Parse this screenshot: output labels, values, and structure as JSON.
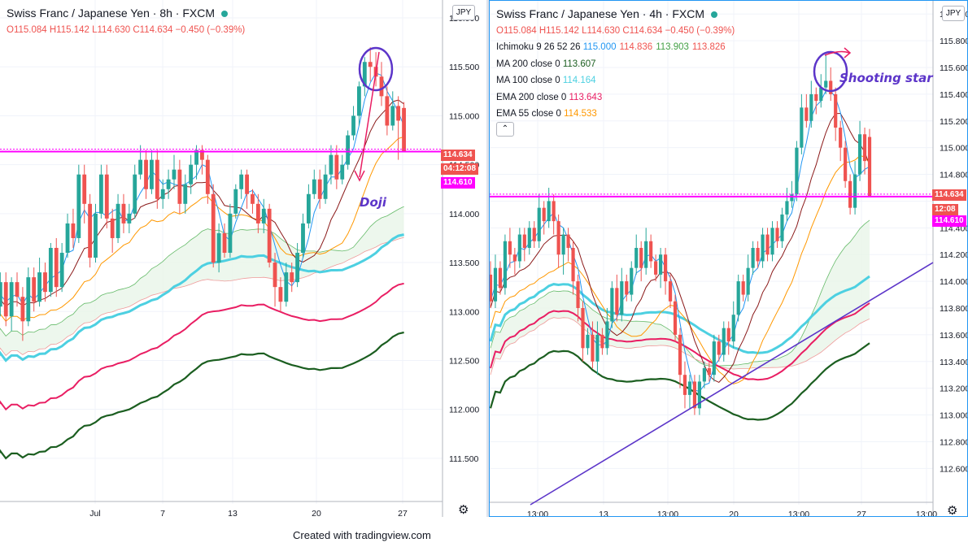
{
  "footer_text": "Created with tradingview.com",
  "colors": {
    "up": "#26a69a",
    "down": "#ef5350",
    "tenkan": "#2196f3",
    "kijun": "#8b1a1a",
    "ma200": "#1b5e20",
    "ma100": "#4dd0e1",
    "ema200": "#e91e63",
    "ema55": "#ff9800",
    "hline": "#ff00ff",
    "ann": "#5c35c9"
  },
  "left": {
    "title": "Swiss Franc / Japanese Yen · 8h · FXCM",
    "ohlc": "O115.084 H115.142 L114.630 C114.634 −0.450 (−0.39%)",
    "currency": "JPY",
    "price_tag": "114.634",
    "countdown_tag": "04:12:08",
    "line_tag": "114.610",
    "annotation": "Doji",
    "x_ticks": [
      "Jul",
      "7",
      "13",
      "20",
      "27"
    ],
    "y_ticks": [
      "116.000",
      "115.500",
      "115.000",
      "114.500",
      "114.000",
      "113.500",
      "113.000",
      "112.500",
      "112.000",
      "111.500"
    ]
  },
  "right": {
    "title": "Swiss Franc / Japanese Yen · 4h · FXCM",
    "ohlc": "O115.084 H115.142 L114.630 C114.634 −0.450 (−0.39%)",
    "currency": "JPY",
    "price_tag": "114.634",
    "countdown_tag": "12:08",
    "line_tag": "114.610",
    "annotation": "Shooting star",
    "collapse": "^",
    "indicators": [
      {
        "label": "Ichimoku 9 26 52 26",
        "values": [
          "115.000",
          "114.836",
          "113.903",
          "113.826"
        ],
        "colors": [
          "#2196f3",
          "#ef5350",
          "#43a047",
          "#ef5350"
        ]
      },
      {
        "label": "MA 200 close 0",
        "values": [
          "113.607"
        ],
        "colors": [
          "#1b5e20"
        ]
      },
      {
        "label": "MA 100 close 0",
        "values": [
          "114.164"
        ],
        "colors": [
          "#4dd0e1"
        ]
      },
      {
        "label": "EMA 200 close 0",
        "values": [
          "113.643"
        ],
        "colors": [
          "#e91e63"
        ]
      },
      {
        "label": "EMA 55 close 0",
        "values": [
          "114.533"
        ],
        "colors": [
          "#ff9800"
        ]
      }
    ],
    "x_ticks": [
      "13:00",
      "13",
      "13:00",
      "20",
      "13:00",
      "27",
      "13:00"
    ],
    "y_ticks": [
      "116.000",
      "115.800",
      "115.600",
      "115.400",
      "115.200",
      "115.000",
      "114.800",
      "114.400",
      "114.200",
      "114.000",
      "113.800",
      "113.600",
      "113.400",
      "113.200",
      "113.000",
      "112.800",
      "112.600"
    ]
  },
  "chart_data": [
    {
      "type": "candlestick",
      "title": "Swiss Franc / Japanese Yen · 8h · FXCM",
      "ylim": [
        111.2,
        116.1
      ],
      "horizontal_line": 114.634,
      "x_ticks": [
        "Jul",
        "7",
        "13",
        "20",
        "27"
      ],
      "candles": [
        [
          113.45,
          113.05,
          113.55,
          112.95
        ],
        [
          113.05,
          113.3,
          113.4,
          112.95
        ],
        [
          113.3,
          112.95,
          113.4,
          112.85
        ],
        [
          112.95,
          113.3,
          113.35,
          112.8
        ],
        [
          113.3,
          113.15,
          113.4,
          113.05
        ],
        [
          113.15,
          112.9,
          113.25,
          112.7
        ],
        [
          112.9,
          113.35,
          113.45,
          112.85
        ],
        [
          113.35,
          113.1,
          113.45,
          113.0
        ],
        [
          113.1,
          113.4,
          113.55,
          113.05
        ],
        [
          113.4,
          113.2,
          113.5,
          113.1
        ],
        [
          113.2,
          113.65,
          113.7,
          113.15
        ],
        [
          113.65,
          113.25,
          113.75,
          113.15
        ],
        [
          113.25,
          113.6,
          113.7,
          113.2
        ],
        [
          113.6,
          113.9,
          114.0,
          113.55
        ],
        [
          113.9,
          113.75,
          114.05,
          113.65
        ],
        [
          113.75,
          114.4,
          114.5,
          113.7
        ],
        [
          114.4,
          114.1,
          114.5,
          113.9
        ],
        [
          114.1,
          113.55,
          114.2,
          113.45
        ],
        [
          113.55,
          114.0,
          114.1,
          113.5
        ],
        [
          114.0,
          114.4,
          114.5,
          113.95
        ],
        [
          114.4,
          113.95,
          114.5,
          113.85
        ],
        [
          113.95,
          113.75,
          114.05,
          113.6
        ],
        [
          113.75,
          114.1,
          114.2,
          113.7
        ],
        [
          114.1,
          113.9,
          114.2,
          113.8
        ],
        [
          113.9,
          114.0,
          114.1,
          113.8
        ],
        [
          114.0,
          114.4,
          114.5,
          113.95
        ],
        [
          114.4,
          114.55,
          114.7,
          114.35
        ],
        [
          114.55,
          114.25,
          114.65,
          114.15
        ],
        [
          114.25,
          114.55,
          114.65,
          114.2
        ],
        [
          114.55,
          114.15,
          114.65,
          114.05
        ],
        [
          114.15,
          114.25,
          114.35,
          114.05
        ],
        [
          114.25,
          114.35,
          114.45,
          114.15
        ],
        [
          114.35,
          114.45,
          114.6,
          114.25
        ],
        [
          114.45,
          114.1,
          114.55,
          114.0
        ],
        [
          114.1,
          114.3,
          114.4,
          114.0
        ],
        [
          114.3,
          114.5,
          114.6,
          114.2
        ],
        [
          114.5,
          114.65,
          114.7,
          114.35
        ],
        [
          114.65,
          114.55,
          114.7,
          114.4
        ],
        [
          114.55,
          114.2,
          114.6,
          114.1
        ],
        [
          114.2,
          113.5,
          114.3,
          113.45
        ],
        [
          113.5,
          113.8,
          113.9,
          113.4
        ],
        [
          113.8,
          113.6,
          113.9,
          113.55
        ],
        [
          113.6,
          114.0,
          114.1,
          113.55
        ],
        [
          114.0,
          114.25,
          114.3,
          113.95
        ],
        [
          114.25,
          114.4,
          114.45,
          114.15
        ],
        [
          114.4,
          114.2,
          114.45,
          114.05
        ],
        [
          114.2,
          114.1,
          114.25,
          114.0
        ],
        [
          114.1,
          113.9,
          114.2,
          113.8
        ],
        [
          113.9,
          114.05,
          114.15,
          113.8
        ],
        [
          114.05,
          113.5,
          114.1,
          113.45
        ],
        [
          113.5,
          113.25,
          113.6,
          113.05
        ],
        [
          113.25,
          113.1,
          113.35,
          113.0
        ],
        [
          113.1,
          113.4,
          113.5,
          113.05
        ],
        [
          113.4,
          113.3,
          113.5,
          113.2
        ],
        [
          113.3,
          113.6,
          113.7,
          113.25
        ],
        [
          113.6,
          113.9,
          114.0,
          113.55
        ],
        [
          113.9,
          114.2,
          114.3,
          113.85
        ],
        [
          114.2,
          114.35,
          114.45,
          114.15
        ],
        [
          114.35,
          114.15,
          114.45,
          114.05
        ],
        [
          114.15,
          114.4,
          114.5,
          114.1
        ],
        [
          114.4,
          114.6,
          114.7,
          114.3
        ],
        [
          114.6,
          114.35,
          114.7,
          114.25
        ],
        [
          114.35,
          114.5,
          114.6,
          114.3
        ],
        [
          114.5,
          114.8,
          114.85,
          114.45
        ],
        [
          114.8,
          115.0,
          115.1,
          114.75
        ],
        [
          115.0,
          115.3,
          115.35,
          114.9
        ],
        [
          115.3,
          115.55,
          115.6,
          115.2
        ],
        [
          115.55,
          115.5,
          115.7,
          115.35
        ],
        [
          115.5,
          115.4,
          115.65,
          115.3
        ],
        [
          115.4,
          115.2,
          115.55,
          115.1
        ],
        [
          115.2,
          114.9,
          115.3,
          114.8
        ],
        [
          114.9,
          115.1,
          115.25,
          114.85
        ],
        [
          115.1,
          114.95,
          115.2,
          114.55
        ],
        [
          115.08,
          114.634,
          115.14,
          114.63
        ]
      ]
    },
    {
      "type": "candlestick",
      "title": "Swiss Franc / Japanese Yen · 4h · FXCM",
      "ylim": [
        112.45,
        116.05
      ],
      "horizontal_line": 114.634,
      "x_ticks": [
        "13:00",
        "13",
        "13:00",
        "20",
        "13:00",
        "27",
        "13:00"
      ],
      "indicators": {
        "ichimoku": [
          115.0,
          114.836,
          113.903,
          113.826
        ],
        "ma200": 113.607,
        "ma100": 114.164,
        "ema200": 113.643,
        "ema55": 114.533
      },
      "candles": [
        [
          114.05,
          113.85,
          114.15,
          113.8
        ],
        [
          113.85,
          114.1,
          114.2,
          113.8
        ],
        [
          114.1,
          113.95,
          114.15,
          113.9
        ],
        [
          113.95,
          114.3,
          114.35,
          113.9
        ],
        [
          114.3,
          114.2,
          114.4,
          114.1
        ],
        [
          114.2,
          114.15,
          114.25,
          114.05
        ],
        [
          114.15,
          114.35,
          114.4,
          114.1
        ],
        [
          114.35,
          114.25,
          114.4,
          114.15
        ],
        [
          114.25,
          114.4,
          114.45,
          114.2
        ],
        [
          114.4,
          114.3,
          114.45,
          114.25
        ],
        [
          114.3,
          114.55,
          114.65,
          114.25
        ],
        [
          114.55,
          114.45,
          114.6,
          114.35
        ],
        [
          114.45,
          114.6,
          114.7,
          114.4
        ],
        [
          114.6,
          114.45,
          114.65,
          114.35
        ],
        [
          114.45,
          114.2,
          114.5,
          114.1
        ],
        [
          114.2,
          114.35,
          114.4,
          114.05
        ],
        [
          114.35,
          114.25,
          114.4,
          114.15
        ],
        [
          114.25,
          114.0,
          114.3,
          113.9
        ],
        [
          114.0,
          113.8,
          114.05,
          113.7
        ],
        [
          113.8,
          113.5,
          113.85,
          113.4
        ],
        [
          113.5,
          113.6,
          113.65,
          113.45
        ],
        [
          113.6,
          113.4,
          113.7,
          113.35
        ],
        [
          113.4,
          113.6,
          113.7,
          113.3
        ],
        [
          113.6,
          113.5,
          113.65,
          113.45
        ],
        [
          113.5,
          113.7,
          113.8,
          113.45
        ],
        [
          113.7,
          113.95,
          114.0,
          113.65
        ],
        [
          113.95,
          113.75,
          114.05,
          113.7
        ],
        [
          113.75,
          114.0,
          114.1,
          113.7
        ],
        [
          114.0,
          113.9,
          114.05,
          113.85
        ],
        [
          113.9,
          114.1,
          114.15,
          113.85
        ],
        [
          114.1,
          114.25,
          114.35,
          114.05
        ],
        [
          114.25,
          114.1,
          114.3,
          114.0
        ],
        [
          114.1,
          114.3,
          114.4,
          114.05
        ],
        [
          114.3,
          114.15,
          114.35,
          114.1
        ],
        [
          114.15,
          114.05,
          114.2,
          114.0
        ],
        [
          114.05,
          114.2,
          114.25,
          113.95
        ],
        [
          114.2,
          114.0,
          114.25,
          113.9
        ],
        [
          114.0,
          113.85,
          114.05,
          113.8
        ],
        [
          113.85,
          113.6,
          113.9,
          113.55
        ],
        [
          113.6,
          113.3,
          113.65,
          113.2
        ],
        [
          113.3,
          113.15,
          113.4,
          113.05
        ],
        [
          113.15,
          113.25,
          113.3,
          113.05
        ],
        [
          113.25,
          113.05,
          113.3,
          113.0
        ],
        [
          113.05,
          113.25,
          113.3,
          113.0
        ],
        [
          113.25,
          113.35,
          113.4,
          113.2
        ],
        [
          113.35,
          113.3,
          113.4,
          113.25
        ],
        [
          113.3,
          113.55,
          113.6,
          113.25
        ],
        [
          113.55,
          113.45,
          113.6,
          113.4
        ],
        [
          113.45,
          113.65,
          113.7,
          113.4
        ],
        [
          113.65,
          113.55,
          113.7,
          113.45
        ],
        [
          113.55,
          113.75,
          113.85,
          113.5
        ],
        [
          113.75,
          114.0,
          114.05,
          113.7
        ],
        [
          114.0,
          113.9,
          114.05,
          113.85
        ],
        [
          113.9,
          114.1,
          114.2,
          113.85
        ],
        [
          114.1,
          114.25,
          114.3,
          114.05
        ],
        [
          114.25,
          114.15,
          114.3,
          114.1
        ],
        [
          114.15,
          114.35,
          114.4,
          114.1
        ],
        [
          114.35,
          114.2,
          114.4,
          114.15
        ],
        [
          114.2,
          114.4,
          114.45,
          114.15
        ],
        [
          114.4,
          114.3,
          114.45,
          114.25
        ],
        [
          114.3,
          114.5,
          114.55,
          114.25
        ],
        [
          114.5,
          114.6,
          114.7,
          114.45
        ],
        [
          114.6,
          114.65,
          114.75,
          114.55
        ],
        [
          114.65,
          115.0,
          115.05,
          114.6
        ],
        [
          115.0,
          115.3,
          115.4,
          114.95
        ],
        [
          115.3,
          115.2,
          115.4,
          115.15
        ],
        [
          115.2,
          115.4,
          115.5,
          115.15
        ],
        [
          115.4,
          115.35,
          115.45,
          115.25
        ],
        [
          115.35,
          115.45,
          115.55,
          115.3
        ],
        [
          115.45,
          115.5,
          115.7,
          115.4
        ],
        [
          115.5,
          115.4,
          115.6,
          115.35
        ],
        [
          115.4,
          115.15,
          115.45,
          115.05
        ],
        [
          115.15,
          115.0,
          115.2,
          114.9
        ],
        [
          115.0,
          114.75,
          115.05,
          114.7
        ],
        [
          114.75,
          114.55,
          114.8,
          114.5
        ],
        [
          114.55,
          114.8,
          114.9,
          114.5
        ],
        [
          114.8,
          115.1,
          115.2,
          114.75
        ],
        [
          115.1,
          114.9,
          115.15,
          114.8
        ],
        [
          115.08,
          114.634,
          115.14,
          114.63
        ]
      ]
    }
  ]
}
